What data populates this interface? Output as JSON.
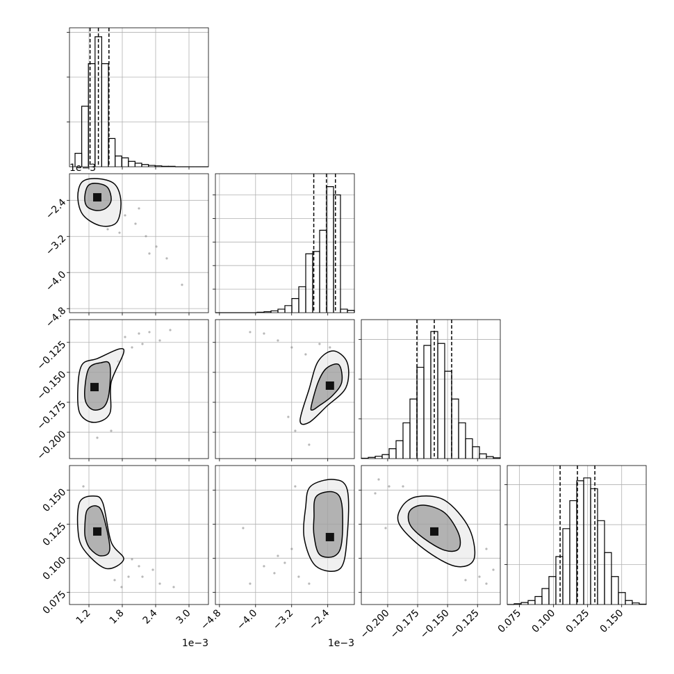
{
  "chart_data": {
    "type": "corner",
    "params": [
      {
        "lim": [
          0.85,
          3.35
        ],
        "ticks": [
          1.2,
          1.8,
          2.4,
          {
            "value": 3,
            "label": "3.0"
          }
        ],
        "offset": "1e−3",
        "quantiles": [
          1.22,
          1.37,
          1.56
        ],
        "hist": {
          "ylim": [
            0,
            3.1
          ],
          "yticks": [
            1,
            2,
            3
          ],
          "bins": [
            0.95,
            1.07,
            1.19,
            1.31,
            1.43,
            1.55,
            1.67,
            1.79,
            1.91,
            2.03,
            2.15,
            2.27,
            2.39,
            2.51,
            2.63,
            2.75,
            2.87,
            2.99,
            3.11,
            3.23,
            3.35
          ],
          "counts": [
            0.3,
            1.35,
            2.3,
            2.9,
            2.3,
            0.63,
            0.24,
            0.2,
            0.12,
            0.08,
            0.05,
            0.03,
            0.02,
            0.01,
            0.01,
            0,
            0,
            0,
            0,
            0
          ]
        }
      },
      {
        "lim": [
          -4.89,
          -1.81
        ],
        "ticks": [
          {
            "value": -4.8,
            "label": "−4.8"
          },
          {
            "value": -4,
            "label": "−4.0"
          },
          {
            "value": -3.2,
            "label": "−3.2"
          },
          {
            "value": -2.4,
            "label": "−2.4"
          }
        ],
        "offset": "1e−3",
        "quantiles": [
          -2.71,
          -2.43,
          -2.23
        ],
        "hist": {
          "ylim": [
            0,
            5.9
          ],
          "yticks": [
            1,
            2,
            3,
            4,
            5
          ],
          "bins": [
            -4.89,
            -4.736,
            -4.582,
            -4.428,
            -4.274,
            -4.12,
            -3.966,
            -3.812,
            -3.658,
            -3.504,
            -3.35,
            -3.196,
            -3.042,
            -2.888,
            -2.734,
            -2.58,
            -2.426,
            -2.272,
            -2.118,
            -1.964,
            -1.81
          ],
          "counts": [
            0,
            0,
            0,
            0,
            0,
            0,
            0.02,
            0.04,
            0.08,
            0.15,
            0.3,
            0.6,
            1.1,
            2.5,
            2.6,
            3.5,
            5.35,
            5.0,
            0.15,
            0.1
          ]
        }
      },
      {
        "lim": [
          -0.222,
          -0.106
        ],
        "ticks": [
          {
            "value": -0.2,
            "label": "−0.200"
          },
          {
            "value": -0.175,
            "label": "−0.175"
          },
          {
            "value": -0.15,
            "label": "−0.150"
          },
          {
            "value": -0.125,
            "label": "−0.125"
          }
        ],
        "quantiles": [
          -0.1756,
          -0.1611,
          -0.1466
        ],
        "hist": {
          "ylim": [
            0,
            3.5
          ],
          "yticks": [
            1,
            2,
            3
          ],
          "bins": [
            -0.222,
            -0.2162,
            -0.2104,
            -0.2046,
            -0.1988,
            -0.193,
            -0.1872,
            -0.1814,
            -0.1756,
            -0.1698,
            -0.164,
            -0.1582,
            -0.1524,
            -0.1466,
            -0.1408,
            -0.135,
            -0.1292,
            -0.1234,
            -0.1176,
            -0.1118,
            -0.106
          ],
          "counts": [
            0.01,
            0.03,
            0.06,
            0.1,
            0.25,
            0.45,
            0.9,
            1.5,
            2.3,
            2.85,
            3.2,
            2.9,
            2.2,
            1.5,
            0.9,
            0.5,
            0.3,
            0.12,
            0.05,
            0.02
          ]
        }
      },
      {
        "lim": [
          0.066,
          0.168
        ],
        "ticks": [
          0.075,
          {
            "value": 0.1,
            "label": "0.100"
          },
          0.125,
          {
            "value": 0.15,
            "label": "0.150"
          }
        ],
        "quantiles": [
          0.1048,
          0.1175,
          0.1303
        ],
        "hist": {
          "ylim": [
            0,
            3.48
          ],
          "yticks": [
            1,
            2,
            3
          ],
          "bins": [
            0.066,
            0.0711,
            0.0762,
            0.0813,
            0.0864,
            0.0915,
            0.0966,
            0.1017,
            0.1068,
            0.1119,
            0.117,
            0.1221,
            0.1272,
            0.1323,
            0.1374,
            0.1425,
            0.1476,
            0.1527,
            0.1578,
            0.1629,
            0.168
          ],
          "counts": [
            0,
            0.02,
            0.05,
            0.1,
            0.2,
            0.4,
            0.7,
            1.2,
            1.9,
            2.6,
            3.1,
            3.17,
            2.9,
            2.1,
            1.3,
            0.7,
            0.3,
            0.1,
            0.04,
            0.01
          ]
        }
      }
    ],
    "panels": [
      {
        "contours": [
          {
            "x": [
              1.0,
              1.075,
              1.35,
              1.6625,
              1.775,
              1.7,
              1.4125,
              1.1
            ],
            "y": [
              -2.348,
              -1.995,
              -1.918,
              -2.041,
              -2.425,
              -2.887,
              -2.964,
              -2.733
            ]
          },
          {
            "x": [
              1.125,
              1.1875,
              1.35,
              1.5375,
              1.6,
              1.5,
              1.325,
              1.1625
            ],
            "y": [
              -2.318,
              -2.072,
              -2.025,
              -2.118,
              -2.395,
              -2.579,
              -2.625,
              -2.533
            ]
          }
        ],
        "center": {
          "x": 1.35,
          "y": -2.333
        },
        "points": {
          "x": [
            1.85,
            2.0375,
            2.225,
            2.4125,
            2.6,
            2.875,
            1.75,
            2.1,
            1.5375,
            2.2875
          ],
          "y": [
            -2.733,
            -2.918,
            -3.195,
            -3.425,
            -3.687,
            -4.272,
            -3.118,
            -2.579,
            -3.041,
            -3.579
          ]
        }
      },
      {
        "contours": [
          {
            "x": [
              1.0,
              1.075,
              1.35,
              1.825,
              1.6,
              1.575,
              1.2875,
              1.0375
            ],
            "y": [
              -0.164,
              -0.1437,
              -0.1385,
              -0.1309,
              -0.1582,
              -0.1843,
              -0.1918,
              -0.1843
            ]
          },
          {
            "x": [
              1.125,
              1.2,
              1.4125,
              1.575,
              1.5625,
              1.475,
              1.2875,
              1.15
            ],
            "y": [
              -0.164,
              -0.1466,
              -0.142,
              -0.1437,
              -0.1669,
              -0.1785,
              -0.1814,
              -0.1756
            ]
          }
        ],
        "center": {
          "x": 1.3,
          "y": -0.1623
        },
        "points": {
          "x": [
            1.85,
            2.1,
            2.2875,
            2.475,
            1.975,
            1.725,
            2.1625,
            1.6,
            1.35,
            2.6625
          ],
          "y": [
            -0.1205,
            -0.1176,
            -0.1164,
            -0.1234,
            -0.1292,
            -0.1408,
            -0.1263,
            -0.1988,
            -0.2046,
            -0.1147
          ]
        }
      },
      {
        "contours": [
          {
            "x": [
              -3.013,
              -2.813,
              -2.613,
              -2.275,
              -1.967,
              -1.998,
              -2.428,
              -2.813
            ],
            "y": [
              -0.1901,
              -0.164,
              -0.1408,
              -0.1321,
              -0.142,
              -0.1628,
              -0.1785,
              -0.1918
            ]
          },
          {
            "x": [
              -2.767,
              -2.613,
              -2.428,
              -2.152,
              -2.09,
              -2.305,
              -2.613,
              -2.736
            ],
            "y": [
              -0.1785,
              -0.1582,
              -0.1466,
              -0.1437,
              -0.1582,
              -0.1698,
              -0.1785,
              -0.1814
            ]
          }
        ],
        "center": {
          "x": -2.352,
          "y": -0.1611
        },
        "points": {
          "x": [
            -3.505,
            -3.198,
            -2.89,
            -3.813,
            -2.582,
            -3.121,
            -3.275,
            -4.121,
            -2.813,
            -2.352
          ],
          "y": [
            -0.1234,
            -0.1292,
            -0.135,
            -0.1176,
            -0.1263,
            -0.1988,
            -0.1872,
            -0.1164,
            -0.2104,
            -0.1292
          ]
        }
      },
      {
        "contours": [
          {
            "x": [
              1.0,
              1.0375,
              1.2875,
              1.45,
              1.6,
              1.825,
              1.5,
              1.1
            ],
            "y": [
              0.1221,
              0.1415,
              0.1456,
              0.1405,
              0.1119,
              0.0992,
              0.0925,
              0.1068
            ]
          },
          {
            "x": [
              1.125,
              1.1625,
              1.325,
              1.45,
              1.575,
              1.4125,
              1.225,
              1.1375
            ],
            "y": [
              0.1221,
              0.1349,
              0.1384,
              0.1323,
              0.1068,
              0.1017,
              0.1068,
              0.1145
            ]
          }
        ],
        "center": {
          "x": 1.35,
          "y": 0.1196
        },
        "points": {
          "x": [
            1.975,
            2.1,
            2.35,
            1.9125,
            1.6625,
            2.475,
            2.1625,
            1.1,
            2.725,
            1.7875
          ],
          "y": [
            0.0992,
            0.0941,
            0.0915,
            0.0864,
            0.0839,
            0.0813,
            0.0864,
            0.1527,
            0.0788,
            0.0788
          ]
        }
      },
      {
        "contours": [
          {
            "x": [
              -2.89,
              -2.782,
              -2.275,
              -1.967,
              -1.967,
              -2.121,
              -2.659,
              -2.921
            ],
            "y": [
              0.1374,
              0.1527,
              0.1578,
              0.1502,
              0.117,
              0.0925,
              0.0941,
              0.1145
            ]
          },
          {
            "x": [
              -2.705,
              -2.659,
              -2.275,
              -2.09,
              -2.09,
              -2.244,
              -2.582,
              -2.705
            ],
            "y": [
              0.1298,
              0.1451,
              0.1486,
              0.14,
              0.1119,
              0.1017,
              0.1027,
              0.117
            ]
          }
        ],
        "center": {
          "x": -2.352,
          "y": 0.1155
        },
        "points": {
          "x": [
            -3.198,
            -3.352,
            -3.505,
            -3.044,
            -3.813,
            -4.121,
            -3.121,
            -2.813,
            -3.582,
            -4.275
          ],
          "y": [
            0.1068,
            0.0966,
            0.1017,
            0.0864,
            0.0941,
            0.0813,
            0.1527,
            0.0813,
            0.089,
            0.1221
          ]
        }
      },
      {
        "contours": [
          {
            "x": [
              -0.1884,
              -0.1756,
              -0.1524,
              -0.1321,
              -0.128,
              -0.1437,
              -0.1698,
              -0.1901
            ],
            "y": [
              0.1374,
              0.1451,
              0.1425,
              0.1221,
              0.0992,
              0.0941,
              0.1068,
              0.1247
            ]
          },
          {
            "x": [
              -0.1814,
              -0.1698,
              -0.1524,
              -0.1408,
              -0.1408,
              -0.1524,
              -0.1698,
              -0.1814
            ],
            "y": [
              0.1349,
              0.1389,
              0.1333,
              0.118,
              0.1068,
              0.1058,
              0.1145,
              0.1247
            ]
          }
        ],
        "center": {
          "x": -0.1611,
          "y": 0.1196
        },
        "points": {
          "x": [
            -0.2075,
            -0.1988,
            -0.1176,
            -0.1234,
            -0.1118,
            -0.2104,
            -0.135,
            -0.1872,
            -0.1176,
            -0.2017
          ],
          "y": [
            0.1578,
            0.1527,
            0.0813,
            0.0864,
            0.0915,
            0.1476,
            0.0839,
            0.1527,
            0.1068,
            0.1221
          ]
        }
      }
    ]
  }
}
